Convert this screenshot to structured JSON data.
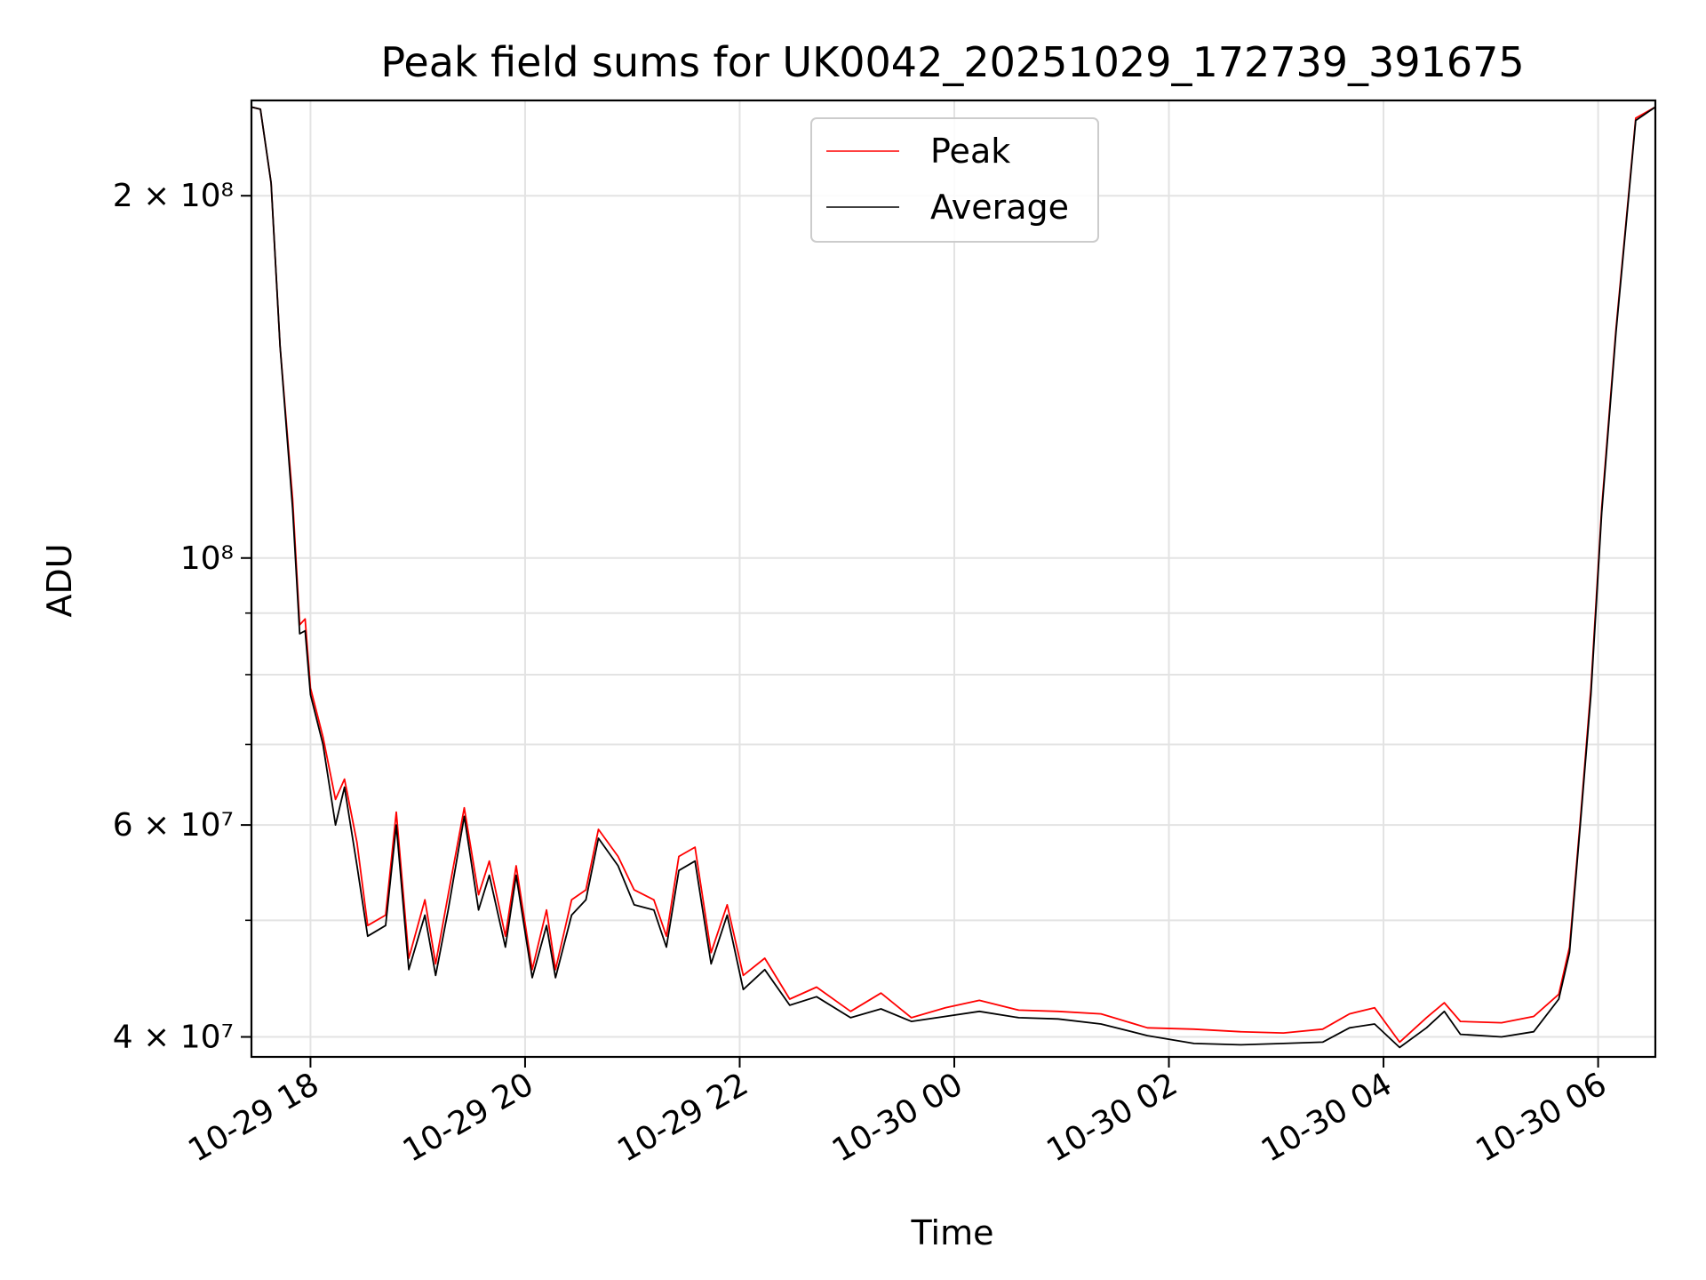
{
  "chart_data": {
    "type": "line",
    "title": "Peak field sums for UK0042_20251029_172739_391675",
    "xlabel": "Time",
    "ylabel": "ADU",
    "yscale": "log",
    "ylim": [
      38500000,
      240000000
    ],
    "xlim": [
      "2025-10-29 17:27",
      "2025-10-30 06:32"
    ],
    "grid": true,
    "legend_position": "upper-center",
    "x_ticks": [
      {
        "t": "2025-10-29 18:00",
        "label": "10-29 18"
      },
      {
        "t": "2025-10-29 20:00",
        "label": "10-29 20"
      },
      {
        "t": "2025-10-29 22:00",
        "label": "10-29 22"
      },
      {
        "t": "2025-10-30 00:00",
        "label": "10-30 00"
      },
      {
        "t": "2025-10-30 02:00",
        "label": "10-30 02"
      },
      {
        "t": "2025-10-30 04:00",
        "label": "10-30 04"
      },
      {
        "t": "2025-10-30 06:00",
        "label": "10-30 06"
      }
    ],
    "y_ticks_major": [
      {
        "value": 40000000,
        "label": "4 × 10⁷"
      },
      {
        "value": 60000000,
        "label": "6 × 10⁷"
      },
      {
        "value": 100000000,
        "label": "10⁸"
      },
      {
        "value": 200000000,
        "label": "2 × 10⁸"
      }
    ],
    "y_ticks_minor": [
      50000000,
      70000000,
      80000000,
      90000000
    ],
    "series": [
      {
        "name": "Peak",
        "color": "#ff0000",
        "points": [
          [
            "2025-10-29 17:27",
            237000000
          ],
          [
            "2025-10-29 17:32",
            236000000
          ],
          [
            "2025-10-29 17:38",
            205000000
          ],
          [
            "2025-10-29 17:43",
            150000000
          ],
          [
            "2025-10-29 17:50",
            112000000
          ],
          [
            "2025-10-29 17:54",
            88000000
          ],
          [
            "2025-10-29 17:57",
            89000000
          ],
          [
            "2025-10-29 18:00",
            78000000
          ],
          [
            "2025-10-29 18:07",
            71000000
          ],
          [
            "2025-10-29 18:14",
            63000000
          ],
          [
            "2025-10-29 18:19",
            65500000
          ],
          [
            "2025-10-29 18:26",
            58000000
          ],
          [
            "2025-10-29 18:32",
            49500000
          ],
          [
            "2025-10-29 18:42",
            50500000
          ],
          [
            "2025-10-29 18:48",
            61500000
          ],
          [
            "2025-10-29 18:55",
            46500000
          ],
          [
            "2025-10-29 19:04",
            52000000
          ],
          [
            "2025-10-29 19:10",
            46000000
          ],
          [
            "2025-10-29 19:17",
            52500000
          ],
          [
            "2025-10-29 19:26",
            62000000
          ],
          [
            "2025-10-29 19:34",
            52500000
          ],
          [
            "2025-10-29 19:40",
            56000000
          ],
          [
            "2025-10-29 19:49",
            48500000
          ],
          [
            "2025-10-29 19:55",
            55500000
          ],
          [
            "2025-10-29 20:04",
            45500000
          ],
          [
            "2025-10-29 20:12",
            51000000
          ],
          [
            "2025-10-29 20:17",
            45500000
          ],
          [
            "2025-10-29 20:26",
            52000000
          ],
          [
            "2025-10-29 20:34",
            53000000
          ],
          [
            "2025-10-29 20:41",
            59500000
          ],
          [
            "2025-10-29 20:52",
            56500000
          ],
          [
            "2025-10-29 21:01",
            53000000
          ],
          [
            "2025-10-29 21:12",
            52000000
          ],
          [
            "2025-10-29 21:19",
            48500000
          ],
          [
            "2025-10-29 21:26",
            56500000
          ],
          [
            "2025-10-29 21:35",
            57500000
          ],
          [
            "2025-10-29 21:44",
            47000000
          ],
          [
            "2025-10-29 21:53",
            51500000
          ],
          [
            "2025-10-29 22:02",
            45000000
          ],
          [
            "2025-10-29 22:14",
            46500000
          ],
          [
            "2025-10-29 22:28",
            43000000
          ],
          [
            "2025-10-29 22:43",
            44000000
          ],
          [
            "2025-10-29 23:02",
            42000000
          ],
          [
            "2025-10-29 23:19",
            43500000
          ],
          [
            "2025-10-29 23:36",
            41500000
          ],
          [
            "2025-10-29 23:55",
            42300000
          ],
          [
            "2025-10-30 00:14",
            42900000
          ],
          [
            "2025-10-30 00:36",
            42100000
          ],
          [
            "2025-10-30 00:58",
            42000000
          ],
          [
            "2025-10-30 01:22",
            41800000
          ],
          [
            "2025-10-30 01:48",
            40700000
          ],
          [
            "2025-10-30 02:14",
            40600000
          ],
          [
            "2025-10-30 02:40",
            40400000
          ],
          [
            "2025-10-30 03:04",
            40300000
          ],
          [
            "2025-10-30 03:26",
            40600000
          ],
          [
            "2025-10-30 03:41",
            41800000
          ],
          [
            "2025-10-30 03:55",
            42300000
          ],
          [
            "2025-10-30 04:09",
            39600000
          ],
          [
            "2025-10-30 04:24",
            41500000
          ],
          [
            "2025-10-30 04:34",
            42700000
          ],
          [
            "2025-10-30 04:43",
            41200000
          ],
          [
            "2025-10-30 05:06",
            41100000
          ],
          [
            "2025-10-30 05:24",
            41600000
          ],
          [
            "2025-10-30 05:38",
            43400000
          ],
          [
            "2025-10-30 05:44",
            47500000
          ],
          [
            "2025-10-30 05:50",
            60500000
          ],
          [
            "2025-10-30 05:56",
            78000000
          ],
          [
            "2025-10-30 06:02",
            110000000
          ],
          [
            "2025-10-30 06:10",
            155000000
          ],
          [
            "2025-10-30 06:17",
            200000000
          ],
          [
            "2025-10-30 06:21",
            232000000
          ],
          [
            "2025-10-30 06:32",
            237000000
          ]
        ]
      },
      {
        "name": "Average",
        "color": "#000000",
        "points": [
          [
            "2025-10-29 17:27",
            237000000
          ],
          [
            "2025-10-29 17:32",
            236000000
          ],
          [
            "2025-10-29 17:38",
            205000000
          ],
          [
            "2025-10-29 17:43",
            150000000
          ],
          [
            "2025-10-29 17:50",
            110000000
          ],
          [
            "2025-10-29 17:54",
            86500000
          ],
          [
            "2025-10-29 17:57",
            87000000
          ],
          [
            "2025-10-29 18:00",
            77000000
          ],
          [
            "2025-10-29 18:07",
            70000000
          ],
          [
            "2025-10-29 18:14",
            60000000
          ],
          [
            "2025-10-29 18:19",
            64500000
          ],
          [
            "2025-10-29 18:26",
            55500000
          ],
          [
            "2025-10-29 18:32",
            48500000
          ],
          [
            "2025-10-29 18:42",
            49500000
          ],
          [
            "2025-10-29 18:48",
            60000000
          ],
          [
            "2025-10-29 18:55",
            45500000
          ],
          [
            "2025-10-29 19:04",
            50500000
          ],
          [
            "2025-10-29 19:10",
            45000000
          ],
          [
            "2025-10-29 19:17",
            51000000
          ],
          [
            "2025-10-29 19:26",
            61000000
          ],
          [
            "2025-10-29 19:34",
            51000000
          ],
          [
            "2025-10-29 19:40",
            54500000
          ],
          [
            "2025-10-29 19:49",
            47500000
          ],
          [
            "2025-10-29 19:55",
            54500000
          ],
          [
            "2025-10-29 20:04",
            44800000
          ],
          [
            "2025-10-29 20:12",
            49500000
          ],
          [
            "2025-10-29 20:17",
            44800000
          ],
          [
            "2025-10-29 20:26",
            50500000
          ],
          [
            "2025-10-29 20:34",
            52000000
          ],
          [
            "2025-10-29 20:41",
            58500000
          ],
          [
            "2025-10-29 20:52",
            55500000
          ],
          [
            "2025-10-29 21:01",
            51500000
          ],
          [
            "2025-10-29 21:12",
            51000000
          ],
          [
            "2025-10-29 21:19",
            47500000
          ],
          [
            "2025-10-29 21:26",
            55000000
          ],
          [
            "2025-10-29 21:35",
            56000000
          ],
          [
            "2025-10-29 21:44",
            46000000
          ],
          [
            "2025-10-29 21:53",
            50500000
          ],
          [
            "2025-10-29 22:02",
            43800000
          ],
          [
            "2025-10-29 22:14",
            45500000
          ],
          [
            "2025-10-29 22:28",
            42500000
          ],
          [
            "2025-10-29 22:43",
            43200000
          ],
          [
            "2025-10-29 23:02",
            41500000
          ],
          [
            "2025-10-29 23:19",
            42200000
          ],
          [
            "2025-10-29 23:36",
            41200000
          ],
          [
            "2025-10-29 23:55",
            41600000
          ],
          [
            "2025-10-30 00:14",
            42000000
          ],
          [
            "2025-10-30 00:36",
            41500000
          ],
          [
            "2025-10-30 00:58",
            41400000
          ],
          [
            "2025-10-30 01:22",
            41000000
          ],
          [
            "2025-10-30 01:48",
            40100000
          ],
          [
            "2025-10-30 02:14",
            39500000
          ],
          [
            "2025-10-30 02:40",
            39400000
          ],
          [
            "2025-10-30 03:04",
            39500000
          ],
          [
            "2025-10-30 03:26",
            39600000
          ],
          [
            "2025-10-30 03:41",
            40700000
          ],
          [
            "2025-10-30 03:55",
            41000000
          ],
          [
            "2025-10-30 04:09",
            39200000
          ],
          [
            "2025-10-30 04:24",
            40700000
          ],
          [
            "2025-10-30 04:34",
            42000000
          ],
          [
            "2025-10-30 04:43",
            40200000
          ],
          [
            "2025-10-30 05:06",
            40000000
          ],
          [
            "2025-10-30 05:24",
            40400000
          ],
          [
            "2025-10-30 05:38",
            43000000
          ],
          [
            "2025-10-30 05:44",
            47000000
          ],
          [
            "2025-10-30 05:50",
            60000000
          ],
          [
            "2025-10-30 05:56",
            77000000
          ],
          [
            "2025-10-30 06:02",
            109000000
          ],
          [
            "2025-10-30 06:10",
            154000000
          ],
          [
            "2025-10-30 06:17",
            199000000
          ],
          [
            "2025-10-30 06:21",
            231000000
          ],
          [
            "2025-10-30 06:32",
            237000000
          ]
        ]
      }
    ]
  }
}
